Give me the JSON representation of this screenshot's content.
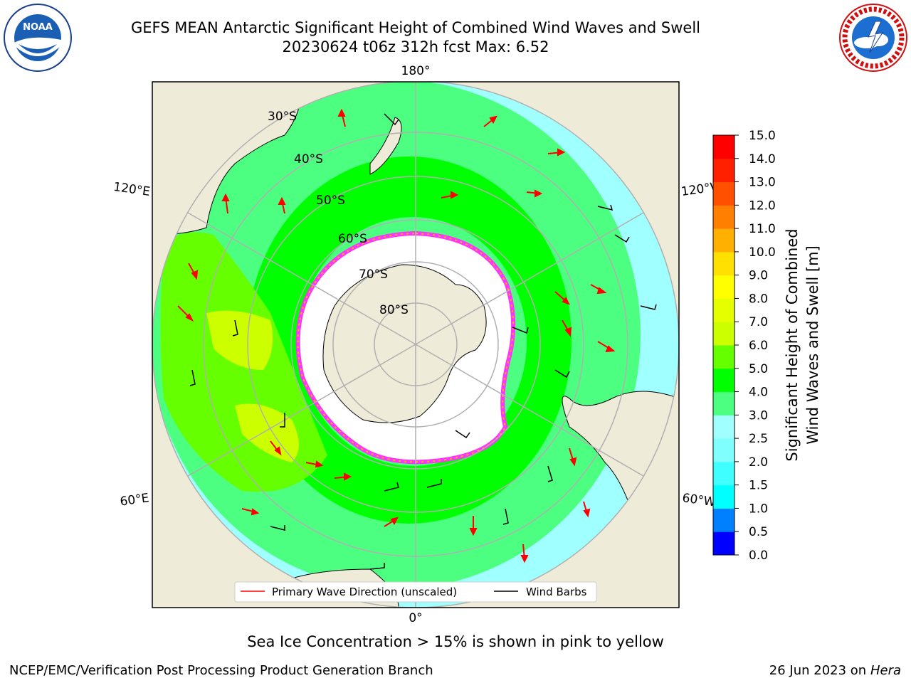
{
  "title": {
    "line1": "GEFS MEAN Antarctic Significant Height of Combined Wind Waves and Swell",
    "line2": "20230624 t06z 312h fcst   Max: 6.52"
  },
  "logos": {
    "noaa_text": "NOAA",
    "noaa_ring": "NATIONAL OCEANIC AND ATMOSPHERIC ADMINISTRATION · U.S. DEPARTMENT OF COMMERCE",
    "nws_ring": "NATIONAL WEATHER SERVICE"
  },
  "map": {
    "lon_labels": {
      "top": "180°",
      "bottom": "0°",
      "upper_left": "120°E",
      "lower_left": "60°E",
      "upper_right": "120°W",
      "lower_right": "60°W"
    },
    "lat_labels": [
      "30°S",
      "40°S",
      "50°S",
      "60°S",
      "70°S",
      "80°S"
    ],
    "legend": {
      "wave": "Primary Wave Direction (unscaled)",
      "barb": "Wind Barbs"
    },
    "colors": {
      "land": "#efebd9",
      "ice": "#ffffff",
      "ice_edge": "#ff33ff",
      "wave_arrow": "#ff0000",
      "barb": "#000000",
      "graticule": "#b0b0b0"
    }
  },
  "colorbar": {
    "label_line1": "Significant Height of Combined",
    "label_line2": "Wind Waves and Swell [m]",
    "ticks": [
      "0.0",
      "0.5",
      "1.0",
      "1.5",
      "2.0",
      "2.5",
      "3.0",
      "4.0",
      "5.0",
      "6.0",
      "7.0",
      "8.0",
      "9.0",
      "10.0",
      "11.0",
      "12.0",
      "13.0",
      "14.0",
      "15.0"
    ],
    "colors": [
      "#0000ff",
      "#0080ff",
      "#00ffff",
      "#40ffff",
      "#80ffff",
      "#a0ffff",
      "#4dff80",
      "#00ff00",
      "#66ff00",
      "#ccff00",
      "#e6ff00",
      "#ffff00",
      "#ffe000",
      "#ffb000",
      "#ff8000",
      "#ff5000",
      "#ff2000",
      "#ff0000"
    ]
  },
  "footer": {
    "subtitle": "Sea Ice Concentration > 15% is shown in pink to yellow",
    "credit": "NCEP/EMC/Verification Post Processing Product Generation Branch",
    "date": "26 Jun 2023 on",
    "machine": "Hera"
  }
}
